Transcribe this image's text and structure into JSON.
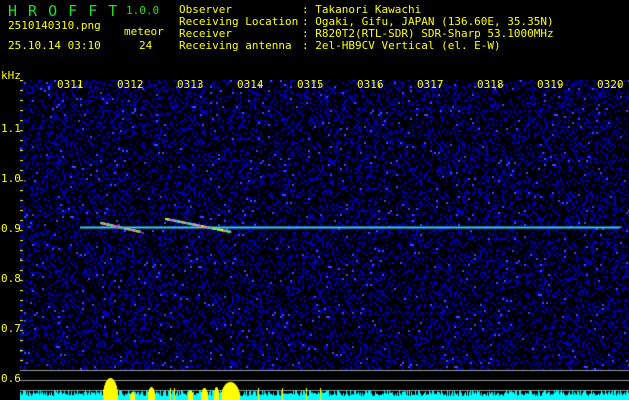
{
  "header": {
    "app_title": "H R O F F T",
    "version": "1.0.0",
    "filename": "2510140310.png",
    "datetime": "25.10.14 03:10",
    "meteor_label": "meteor",
    "meteor_count": "24"
  },
  "info": [
    {
      "label": "Observer",
      "value": ": Takanori Kawachi"
    },
    {
      "label": "Receiving Location",
      "value": ": Ogaki, Gifu, JAPAN (136.60E, 35.35N)"
    },
    {
      "label": "Receiver",
      "value": ": R820T2(RTL-SDR) SDR-Sharp 53.1000MHz"
    },
    {
      "label": "Receiving antenna",
      "value": ": 2el-HB9CV Vertical (el. E-W)"
    }
  ],
  "spectrogram": {
    "y_unit": "kHz",
    "y_ticks": [
      "1.1",
      "1.0",
      "0.9",
      "0.8",
      "0.7",
      "0.6"
    ],
    "y_values": [
      1.1,
      1.0,
      0.9,
      0.8,
      0.7,
      0.6
    ],
    "x_ticks": [
      "0311",
      "0312",
      "0313",
      "0314",
      "0315",
      "0316",
      "0317",
      "0318",
      "0319",
      "0320"
    ],
    "carrier_khz": 0.905,
    "colors": {
      "background": "#00001a",
      "noise": "#1a1acc",
      "carrier": "#33ccff",
      "level": "#00ffff",
      "peak": "#ffff00"
    }
  }
}
